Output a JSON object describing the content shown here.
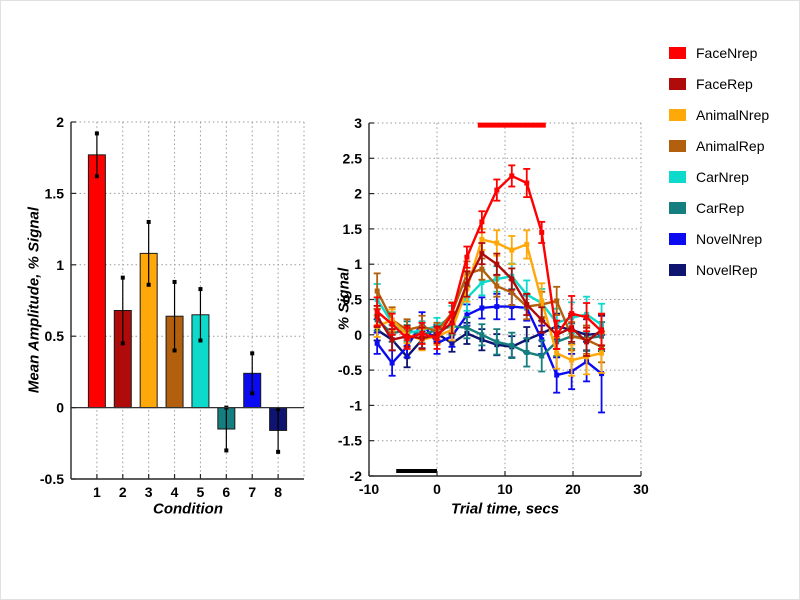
{
  "figure": {
    "background": "#ffffff",
    "axis_color": "#262626",
    "grid_color": "#9a9a9a"
  },
  "chart_data": [
    {
      "name": "mean-amplitude-bar-chart",
      "type": "bar",
      "title": "",
      "xlabel": "Condition",
      "ylabel": "Mean Amplitude, % Signal",
      "categories": [
        "1",
        "2",
        "3",
        "4",
        "5",
        "6",
        "7",
        "8"
      ],
      "values": [
        1.77,
        0.68,
        1.08,
        0.64,
        0.65,
        -0.15,
        0.24,
        -0.16
      ],
      "errors": [
        0.15,
        0.23,
        0.22,
        0.24,
        0.18,
        0.15,
        0.14,
        0.15
      ],
      "bar_colors": [
        "#ff0000",
        "#b00b0b",
        "#ffa80a",
        "#b2600e",
        "#0edacc",
        "#157f80",
        "#0b0bf2",
        "#0e1470"
      ],
      "xlim": [
        0,
        9
      ],
      "ylim": [
        -0.5,
        2
      ],
      "yticks": [
        -0.5,
        0,
        0.5,
        1,
        1.5,
        2
      ],
      "grid": true,
      "legend_position": "none"
    },
    {
      "name": "timecourse-line-chart",
      "type": "line",
      "title": "",
      "xlabel": "Trial time, secs",
      "ylabel": "% Signal",
      "xlim": [
        -10,
        30
      ],
      "ylim": [
        -2,
        3
      ],
      "xticks": [
        -10,
        0,
        10,
        20,
        30
      ],
      "yticks": [
        -2,
        -1.5,
        -1,
        -0.5,
        0,
        0.5,
        1,
        1.5,
        2,
        2.5,
        3
      ],
      "grid": true,
      "legend_position": "outside-right",
      "x": [
        -8.8,
        -6.6,
        -4.4,
        -2.2,
        0,
        2.2,
        4.4,
        6.6,
        8.8,
        11,
        13.2,
        15.4,
        17.6,
        19.8,
        22,
        24.2
      ],
      "series": [
        {
          "name": "FaceNrep",
          "color": "#ff0000",
          "values": [
            0.33,
            0.15,
            -0.05,
            0.02,
            -0.05,
            0.3,
            1.1,
            1.6,
            2.05,
            2.25,
            2.15,
            1.45,
            0.0,
            0.3,
            0.25,
            0.05
          ],
          "errors": [
            0.2,
            0.15,
            0.15,
            0.15,
            0.15,
            0.15,
            0.15,
            0.15,
            0.15,
            0.15,
            0.2,
            0.15,
            0.2,
            0.25,
            0.2,
            0.25
          ]
        },
        {
          "name": "FaceRep",
          "color": "#b00b0b",
          "values": [
            0.26,
            -0.07,
            -0.02,
            -0.05,
            0.0,
            0.17,
            0.72,
            1.15,
            1.0,
            0.79,
            0.43,
            0.21,
            0.0,
            0.1,
            -0.1,
            0.07
          ],
          "errors": [
            0.15,
            0.15,
            0.15,
            0.15,
            0.12,
            0.15,
            0.18,
            0.15,
            0.15,
            0.15,
            0.15,
            0.18,
            0.2,
            0.2,
            0.2,
            0.22
          ]
        },
        {
          "name": "AnimalNrep",
          "color": "#ffa80a",
          "values": [
            0.12,
            0.21,
            0.0,
            -0.07,
            -0.02,
            0.07,
            0.65,
            1.35,
            1.3,
            1.2,
            1.28,
            0.48,
            -0.26,
            -0.36,
            -0.31,
            -0.26
          ],
          "errors": [
            0.15,
            0.15,
            0.12,
            0.15,
            0.12,
            0.15,
            0.18,
            0.15,
            0.18,
            0.2,
            0.2,
            0.25,
            0.22,
            0.22,
            0.25,
            0.28
          ]
        },
        {
          "name": "AnimalRep",
          "color": "#b2600e",
          "values": [
            0.62,
            0.21,
            0.07,
            0.12,
            0.05,
            0.31,
            0.86,
            0.93,
            0.69,
            0.6,
            0.4,
            0.43,
            0.48,
            -0.02,
            -0.07,
            -0.17
          ],
          "errors": [
            0.25,
            0.18,
            0.15,
            0.15,
            0.12,
            0.15,
            0.18,
            0.15,
            0.15,
            0.18,
            0.18,
            0.18,
            0.2,
            0.2,
            0.2,
            0.22
          ]
        },
        {
          "name": "CarNrep",
          "color": "#0edacc",
          "values": [
            0.5,
            0.17,
            0.02,
            0.07,
            0.12,
            0.26,
            0.52,
            0.74,
            0.79,
            0.83,
            0.57,
            0.45,
            0.17,
            0.24,
            0.29,
            0.14
          ],
          "errors": [
            0.22,
            0.15,
            0.12,
            0.12,
            0.12,
            0.15,
            0.18,
            0.18,
            0.18,
            0.18,
            0.2,
            0.2,
            0.2,
            0.22,
            0.25,
            0.3
          ]
        },
        {
          "name": "CarRep",
          "color": "#157f80",
          "values": [
            0.21,
            0.02,
            0.07,
            0.0,
            0.07,
            0.12,
            0.1,
            0.0,
            -0.1,
            -0.15,
            -0.25,
            -0.3,
            -0.1,
            -0.02,
            -0.05,
            -0.02
          ],
          "errors": [
            0.15,
            0.12,
            0.12,
            0.12,
            0.1,
            0.12,
            0.15,
            0.15,
            0.18,
            0.18,
            0.2,
            0.22,
            0.2,
            0.18,
            0.18,
            0.2
          ]
        },
        {
          "name": "NovelNrep",
          "color": "#0b0bf2",
          "values": [
            -0.12,
            -0.4,
            -0.17,
            0.17,
            -0.12,
            -0.02,
            0.28,
            0.38,
            0.4,
            0.4,
            0.38,
            -0.07,
            -0.57,
            -0.52,
            -0.38,
            -0.55
          ],
          "errors": [
            0.15,
            0.18,
            0.15,
            0.15,
            0.15,
            0.15,
            0.15,
            0.15,
            0.18,
            0.18,
            0.18,
            0.2,
            0.25,
            0.25,
            0.28,
            0.55
          ]
        },
        {
          "name": "NovelRep",
          "color": "#0e1470",
          "values": [
            0.07,
            -0.07,
            -0.31,
            -0.07,
            0.02,
            -0.12,
            0.02,
            -0.07,
            -0.14,
            -0.17,
            -0.07,
            0.02,
            0.12,
            0.07,
            0.0,
            0.02
          ],
          "errors": [
            0.15,
            0.15,
            0.15,
            0.12,
            0.12,
            0.12,
            0.15,
            0.15,
            0.15,
            0.15,
            0.18,
            0.18,
            0.18,
            0.2,
            0.22,
            0.25
          ]
        }
      ],
      "annotations": [
        {
          "name": "significance-marker",
          "type": "hline-segment",
          "x1": 6,
          "x2": 16,
          "y": 2.97,
          "color": "#ff0000",
          "stroke_width": 5
        },
        {
          "name": "stimulus-period-marker",
          "type": "hline-segment",
          "x1": -6,
          "x2": 0,
          "y": -1.93,
          "color": "#000000",
          "stroke_width": 4
        }
      ]
    }
  ],
  "legend": {
    "items": [
      {
        "label": "FaceNrep",
        "color": "#ff0000"
      },
      {
        "label": "FaceRep",
        "color": "#b00b0b"
      },
      {
        "label": "AnimalNrep",
        "color": "#ffa80a"
      },
      {
        "label": "AnimalRep",
        "color": "#b2600e"
      },
      {
        "label": "CarNrep",
        "color": "#0edacc"
      },
      {
        "label": "CarRep",
        "color": "#157f80"
      },
      {
        "label": "NovelNrep",
        "color": "#0b0bf2"
      },
      {
        "label": "NovelRep",
        "color": "#0e1470"
      }
    ]
  }
}
